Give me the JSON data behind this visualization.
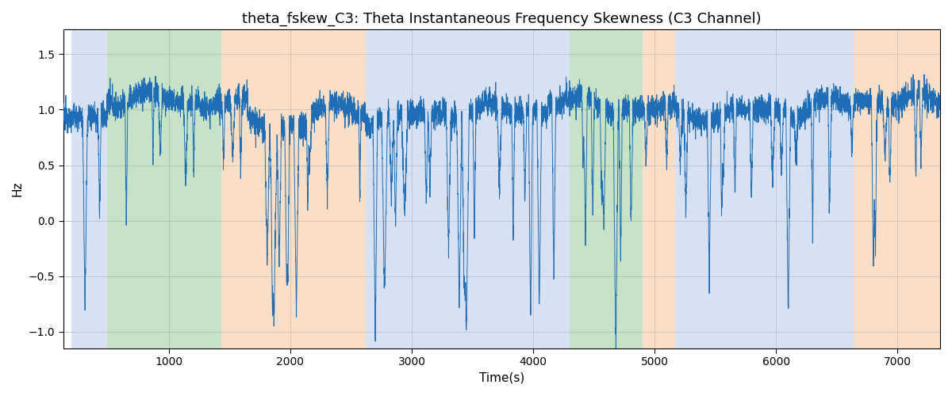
{
  "title": "theta_fskew_C3: Theta Instantaneous Frequency Skewness (C3 Channel)",
  "xlabel": "Time(s)",
  "ylabel": "Hz",
  "xlim": [
    130,
    7350
  ],
  "ylim": [
    -1.15,
    1.72
  ],
  "line_color": "#1f6eb5",
  "line_width": 0.7,
  "background_color": "#ffffff",
  "grid_color": "#b0b0b0",
  "bands": [
    {
      "start": 200,
      "end": 490,
      "color": "#aec6e8",
      "alpha": 0.5
    },
    {
      "start": 490,
      "end": 1430,
      "color": "#90c890",
      "alpha": 0.5
    },
    {
      "start": 1430,
      "end": 2620,
      "color": "#f5c090",
      "alpha": 0.5
    },
    {
      "start": 2620,
      "end": 4120,
      "color": "#aec6e8",
      "alpha": 0.5
    },
    {
      "start": 4120,
      "end": 4300,
      "color": "#aec6e8",
      "alpha": 0.5
    },
    {
      "start": 4300,
      "end": 4900,
      "color": "#90c890",
      "alpha": 0.5
    },
    {
      "start": 4900,
      "end": 5170,
      "color": "#f5c090",
      "alpha": 0.5
    },
    {
      "start": 5170,
      "end": 6640,
      "color": "#aec6e8",
      "alpha": 0.5
    },
    {
      "start": 6640,
      "end": 7350,
      "color": "#f5c090",
      "alpha": 0.5
    }
  ],
  "yticks": [
    -1.0,
    -0.5,
    0.0,
    0.5,
    1.0,
    1.5
  ],
  "xticks": [
    1000,
    2000,
    3000,
    4000,
    5000,
    6000,
    7000
  ],
  "title_fontsize": 13,
  "label_fontsize": 11,
  "seed": 12345,
  "n_points": 7300,
  "x_start": 130,
  "x_end": 7350
}
